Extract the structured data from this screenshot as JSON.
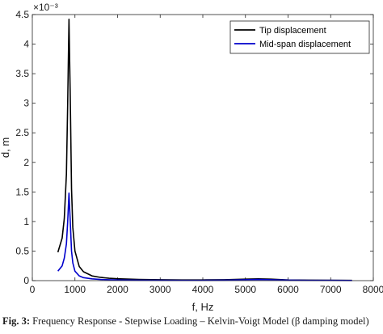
{
  "chart_data": {
    "type": "line",
    "xlabel": "f, Hz",
    "ylabel": "d, m",
    "y_multiplier": "×10⁻³",
    "xlim": [
      0,
      8000
    ],
    "ylim": [
      0,
      4.5
    ],
    "xticks": [
      "0",
      "1000",
      "2000",
      "3000",
      "4000",
      "5000",
      "6000",
      "7000",
      "8000"
    ],
    "yticks": [
      "0",
      "0.5",
      "1",
      "1.5",
      "2",
      "2.5",
      "3",
      "3.5",
      "4",
      "4.5"
    ],
    "grid": false,
    "legend_position": "top-right",
    "series": [
      {
        "name": "Tip displacement",
        "color": "#000000",
        "x": [
          600,
          700,
          750,
          800,
          830,
          860,
          890,
          920,
          950,
          1000,
          1100,
          1200,
          1400,
          1600,
          1800,
          2000,
          2500,
          3000,
          3500,
          4000,
          4500,
          5000,
          5300,
          5600,
          6000,
          6500,
          7000,
          7500
        ],
        "y": [
          0.48,
          0.72,
          1.05,
          1.8,
          3.0,
          4.42,
          3.1,
          1.55,
          0.9,
          0.5,
          0.24,
          0.15,
          0.08,
          0.055,
          0.04,
          0.032,
          0.02,
          0.015,
          0.012,
          0.012,
          0.015,
          0.025,
          0.03,
          0.025,
          0.012,
          0.008,
          0.006,
          0.005
        ]
      },
      {
        "name": "Mid-span displacement",
        "color": "#0000cc",
        "x": [
          600,
          700,
          750,
          800,
          830,
          860,
          890,
          920,
          950,
          1000,
          1100,
          1200,
          1400,
          1600,
          1800,
          2000,
          2500,
          3000,
          3500,
          4000,
          4500,
          5000,
          5300,
          5600,
          6000,
          6500,
          7000,
          7500
        ],
        "y": [
          0.16,
          0.25,
          0.38,
          0.62,
          1.0,
          1.48,
          1.0,
          0.5,
          0.3,
          0.16,
          0.08,
          0.05,
          0.03,
          0.02,
          0.015,
          0.012,
          0.008,
          0.006,
          0.005,
          0.005,
          0.008,
          0.015,
          0.02,
          0.015,
          0.008,
          0.005,
          0.004,
          0.003
        ]
      }
    ]
  },
  "caption": {
    "label": "Fig. 3:",
    "text": " Frequency Response - Stepwise Loading – Kelvin-Voigt Model (β damping model)"
  }
}
